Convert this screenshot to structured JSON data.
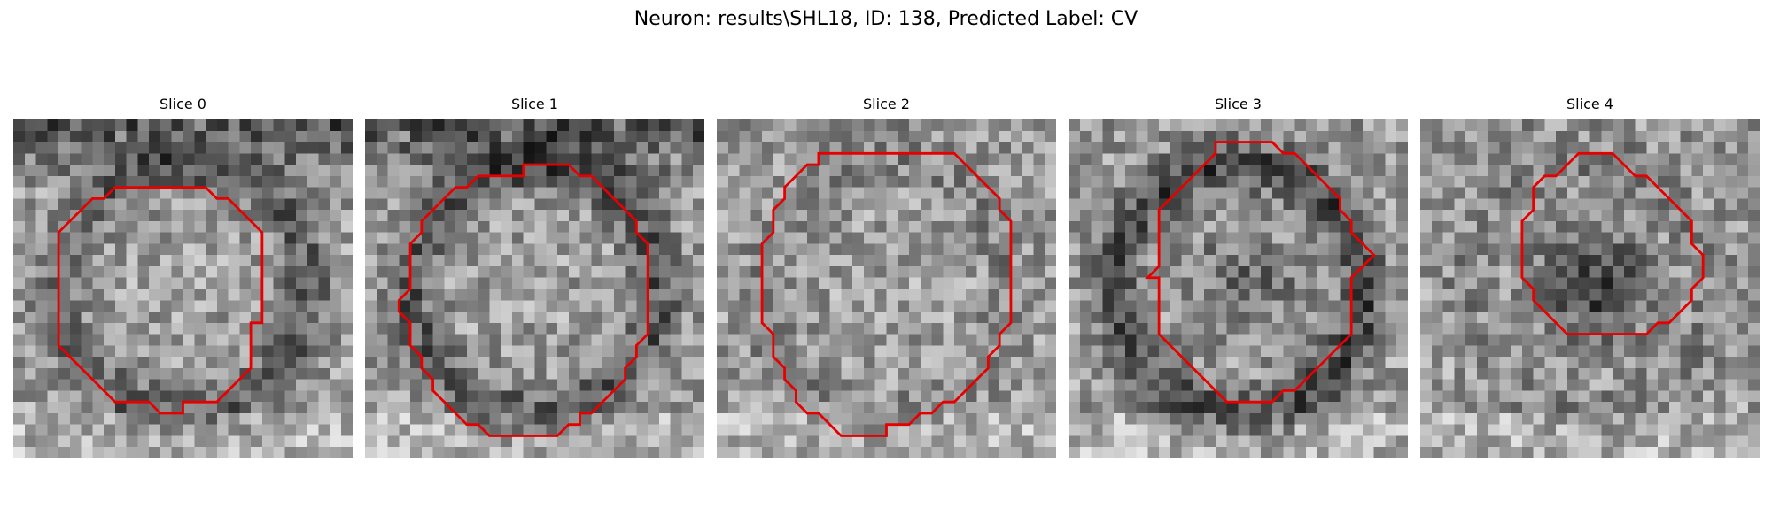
{
  "figure": {
    "title": "Neuron: results\\SHL18, ID: 138, Predicted Label: CV"
  },
  "colors": {
    "contour": "#e60000",
    "background": "#ffffff"
  },
  "slices": [
    {
      "label": "Slice 0",
      "seed": 11,
      "halo": 0.55,
      "darkTop": 0.9,
      "lesion": 0.0
    },
    {
      "label": "Slice 1",
      "seed": 23,
      "halo": 0.6,
      "darkTop": 0.85,
      "lesion": 0.0
    },
    {
      "label": "Slice 2",
      "seed": 37,
      "halo": 0.2,
      "darkTop": 0.1,
      "lesion": 0.0
    },
    {
      "label": "Slice 3",
      "seed": 41,
      "halo": 0.75,
      "darkTop": 0.1,
      "lesion": 0.5
    },
    {
      "label": "Slice 4",
      "seed": 59,
      "halo": 0.2,
      "darkTop": 0.1,
      "lesion": 0.9
    }
  ]
}
